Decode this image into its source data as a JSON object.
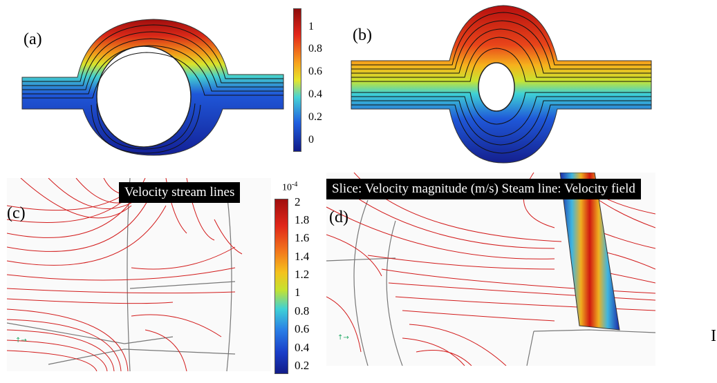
{
  "panels": {
    "a": {
      "label": "(a)",
      "colorbar_ticks": [
        "1",
        "0.8",
        "0.6",
        "0.4",
        "0.2",
        "0"
      ]
    },
    "b": {
      "label": "(b)"
    },
    "c": {
      "label": "(c)",
      "title": "Velocity stream lines",
      "colorbar_exponent": "10-4",
      "colorbar_ticks": [
        "2",
        "1.8",
        "1.6",
        "1.4",
        "1.2",
        "1",
        "0.8",
        "0.6",
        "0.4",
        "0.2"
      ]
    },
    "d": {
      "label": "(d)",
      "title": "Slice: Velocity magnitude (m/s)  Steam line: Velocity field"
    }
  },
  "edge_glyph": "I",
  "colors": {
    "stream_red": "#d21a1a",
    "jet_low": "#1a2aa8",
    "jet_high": "#b00d0d",
    "geometry_gray": "#777777"
  }
}
